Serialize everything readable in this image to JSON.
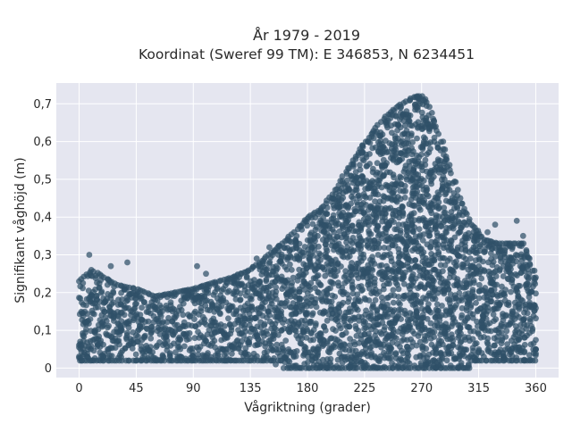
{
  "chart_data": {
    "type": "scatter",
    "title": "År 1979 - 2019",
    "subtitle": "Koordinat (Sweref 99 TM): E 346853, N 6234451",
    "xlabel": "Vågriktning (grader)",
    "ylabel": "Signifikant våghöjd (m)",
    "xlim": [
      -18,
      378
    ],
    "ylim": [
      -0.025,
      0.755
    ],
    "x_ticks": [
      0,
      45,
      90,
      135,
      180,
      225,
      270,
      315,
      360
    ],
    "x_tick_labels": [
      "0",
      "45",
      "90",
      "135",
      "180",
      "225",
      "270",
      "315",
      "360"
    ],
    "y_ticks": [
      0,
      0.1,
      0.2,
      0.3,
      0.4,
      0.5,
      0.6,
      0.7
    ],
    "y_tick_labels": [
      "0",
      "0,1",
      "0,2",
      "0,3",
      "0,4",
      "0,5",
      "0,6",
      "0,7"
    ],
    "grid": true,
    "legend": "none",
    "colors": {
      "marker": "#2f5168",
      "plot_background": "#e5e6f0",
      "grid": "#ffffff"
    },
    "envelope_max": {
      "x": [
        0,
        10,
        20,
        30,
        45,
        60,
        75,
        90,
        100,
        120,
        135,
        150,
        160,
        170,
        180,
        190,
        200,
        210,
        220,
        230,
        240,
        250,
        260,
        265,
        270,
        275,
        280,
        290,
        300,
        310,
        320,
        330,
        340,
        350,
        360
      ],
      "y": [
        0.23,
        0.26,
        0.24,
        0.22,
        0.21,
        0.19,
        0.2,
        0.21,
        0.22,
        0.24,
        0.26,
        0.3,
        0.33,
        0.36,
        0.4,
        0.42,
        0.46,
        0.52,
        0.57,
        0.62,
        0.66,
        0.69,
        0.71,
        0.72,
        0.72,
        0.7,
        0.66,
        0.56,
        0.45,
        0.38,
        0.34,
        0.33,
        0.33,
        0.33,
        0.24
      ]
    },
    "sample_points": [
      {
        "x": 8,
        "y": 0.3
      },
      {
        "x": 25,
        "y": 0.27
      },
      {
        "x": 38,
        "y": 0.28
      },
      {
        "x": 93,
        "y": 0.27
      },
      {
        "x": 100,
        "y": 0.25
      },
      {
        "x": 128,
        "y": 0.25
      },
      {
        "x": 140,
        "y": 0.29
      },
      {
        "x": 150,
        "y": 0.32
      },
      {
        "x": 328,
        "y": 0.38
      },
      {
        "x": 345,
        "y": 0.39
      },
      {
        "x": 350,
        "y": 0.35
      },
      {
        "x": 355,
        "y": 0.29
      },
      {
        "x": 322,
        "y": 0.36
      },
      {
        "x": 340,
        "y": 0.33
      },
      {
        "x": 85,
        "y": 0.02
      },
      {
        "x": 115,
        "y": 0.02
      },
      {
        "x": 155,
        "y": 0.01
      },
      {
        "x": 312,
        "y": 0.02
      },
      {
        "x": 2,
        "y": 0.02
      },
      {
        "x": 360,
        "y": 0.05
      }
    ]
  }
}
